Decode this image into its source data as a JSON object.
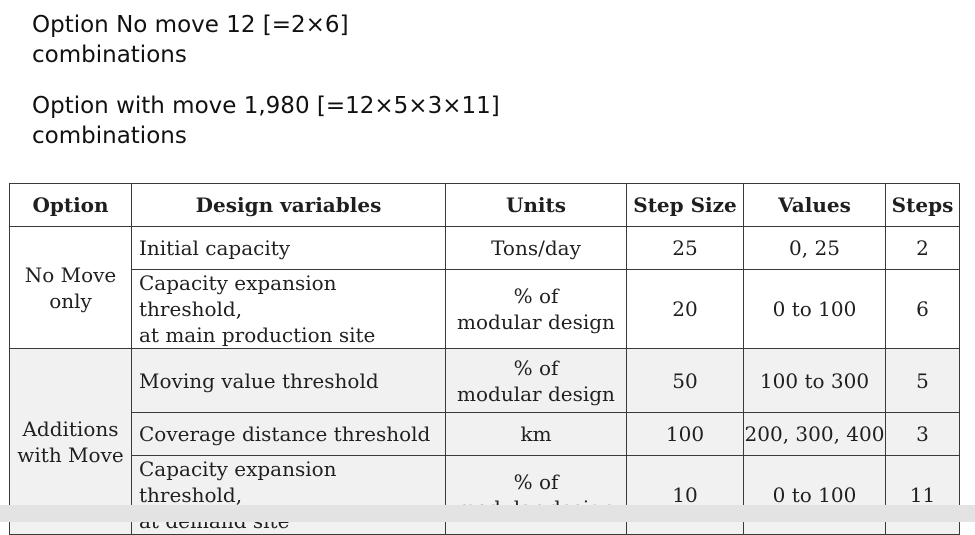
{
  "header_lines": {
    "line1": "Option No move 12 [=2×6]",
    "line2": "combinations",
    "line3": "Option with move 1,980 [=12×5×3×11]",
    "line4": "combinations"
  },
  "table": {
    "headers": {
      "option": "Option",
      "design_variables": "Design variables",
      "units": "Units",
      "step_size": "Step Size",
      "values": "Values",
      "steps": "Steps"
    },
    "groups": [
      {
        "option_line1": "No Move",
        "option_line2": "only",
        "rows": [
          {
            "variable_line1": "Initial capacity",
            "variable_line2": "",
            "units_line1": "Tons/day",
            "units_line2": "",
            "step_size": "25",
            "values": "0, 25",
            "steps": "2"
          },
          {
            "variable_line1": "Capacity expansion threshold,",
            "variable_line2": "at main production site",
            "units_line1": "% of",
            "units_line2": "modular design",
            "step_size": "20",
            "values": "0 to 100",
            "steps": "6"
          }
        ]
      },
      {
        "option_line1": "Additions",
        "option_line2": "with Move",
        "rows": [
          {
            "variable_line1": "Moving value threshold",
            "variable_line2": "",
            "units_line1": "% of",
            "units_line2": "modular design",
            "step_size": "50",
            "values": "100 to 300",
            "steps": "5"
          },
          {
            "variable_line1": "Coverage distance threshold",
            "variable_line2": "",
            "units_line1": "km",
            "units_line2": "",
            "step_size": "100",
            "values": "200, 300, 400",
            "steps": "3"
          },
          {
            "variable_line1": "Capacity expansion threshold,",
            "variable_line2": "at demand site",
            "units_line1": "% of",
            "units_line2": "modular design",
            "step_size": "10",
            "values": "0 to 100",
            "steps": "11"
          }
        ]
      }
    ]
  }
}
